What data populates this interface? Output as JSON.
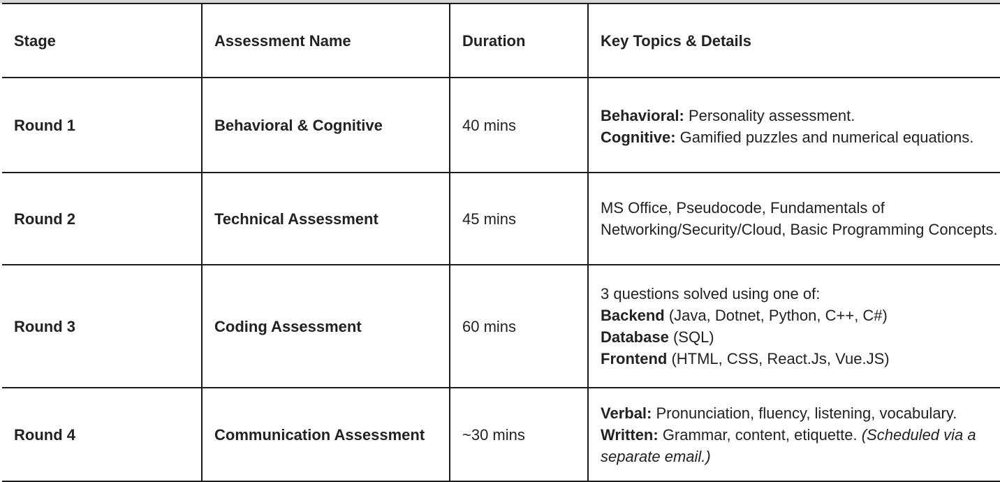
{
  "table": {
    "headers": {
      "stage": "Stage",
      "assessment_name": "Assessment Name",
      "duration": "Duration",
      "details": "Key Topics & Details"
    },
    "rows": [
      {
        "stage": "Round 1",
        "assessment_name": "Behavioral & Cognitive",
        "duration": "40 mins",
        "details": {
          "line1_label": "Behavioral:",
          "line1_text": " Personality assessment.",
          "line2_label": "Cognitive:",
          "line2_text": " Gamified puzzles and numerical equations."
        }
      },
      {
        "stage": "Round 2",
        "assessment_name": "Technical Assessment",
        "duration": "45 mins",
        "details": {
          "text": "MS Office, Pseudocode, Fundamentals of Networking/Security/Cloud, Basic Programming Concepts."
        }
      },
      {
        "stage": "Round 3",
        "assessment_name": "Coding Assessment",
        "duration": "60 mins",
        "details": {
          "intro": "3 questions solved using one of:",
          "line1_label": "Backend",
          "line1_text": " (Java, Dotnet, Python, C++, C#)",
          "line2_label": "Database",
          "line2_text": " (SQL)",
          "line3_label": "Frontend",
          "line3_text": " (HTML, CSS, React.Js, Vue.JS)"
        }
      },
      {
        "stage": "Round 4",
        "assessment_name": "Communication Assessment",
        "duration": "~30 mins",
        "details": {
          "line1_label": "Verbal:",
          "line1_text": " Pronunciation, fluency, listening, vocabulary.",
          "line2_label": "Written:",
          "line2_text": " Grammar, content, etiquette. ",
          "line2_note": "(Scheduled via a separate email.)"
        }
      }
    ]
  }
}
